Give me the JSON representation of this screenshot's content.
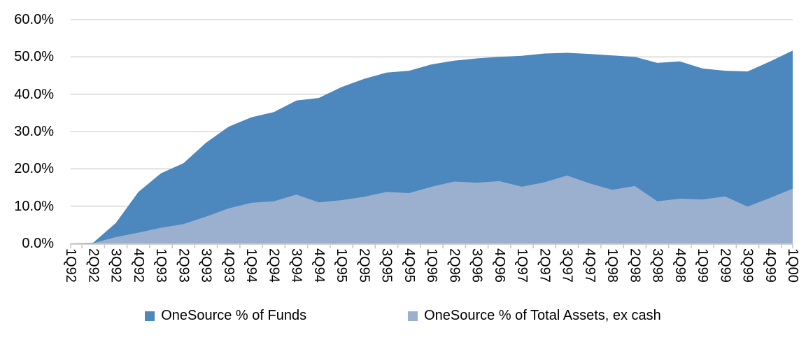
{
  "chart_data": {
    "type": "area",
    "title": "",
    "overlapping_series": true,
    "categories": [
      "1Q92",
      "2Q92",
      "3Q92",
      "4Q92",
      "1Q93",
      "2Q93",
      "3Q93",
      "4Q93",
      "1Q94",
      "2Q94",
      "3Q94",
      "4Q94",
      "1Q95",
      "2Q95",
      "3Q95",
      "4Q95",
      "1Q96",
      "2Q96",
      "3Q96",
      "4Q96",
      "1Q97",
      "2Q97",
      "3Q97",
      "4Q97",
      "1Q98",
      "2Q98",
      "3Q98",
      "4Q98",
      "1Q99",
      "2Q99",
      "3Q99",
      "4Q99",
      "1Q00"
    ],
    "series": [
      {
        "name": "OneSource % of Funds",
        "color": "#4C87BE",
        "values": [
          0.0,
          0.2,
          5.5,
          13.8,
          18.8,
          21.5,
          27.0,
          31.3,
          33.8,
          35.2,
          38.3,
          39.0,
          41.9,
          44.1,
          45.8,
          46.3,
          48.0,
          49.0,
          49.6,
          50.0,
          50.3,
          50.9,
          51.1,
          50.8,
          50.4,
          50.0,
          48.4,
          48.8,
          46.9,
          46.3,
          46.1,
          48.8,
          51.7
        ]
      },
      {
        "name": "OneSource % of Total Assets, ex cash",
        "color": "#9BB0CE",
        "values": [
          0.0,
          0.1,
          1.7,
          2.9,
          4.2,
          5.2,
          7.2,
          9.4,
          10.9,
          11.3,
          13.1,
          11.0,
          11.6,
          12.5,
          13.8,
          13.5,
          15.2,
          16.6,
          16.3,
          16.7,
          15.2,
          16.4,
          18.2,
          16.1,
          14.4,
          15.4,
          11.3,
          12.0,
          11.8,
          12.6,
          9.9,
          12.2,
          14.7
        ]
      }
    ],
    "y_axis": {
      "min": 0,
      "max": 60,
      "tick_step": 10,
      "tick_labels": [
        "0.0%",
        "10.0%",
        "20.0%",
        "30.0%",
        "40.0%",
        "50.0%",
        "60.0%"
      ]
    },
    "x_axis": {
      "label_rotation": "vertical-top-down"
    },
    "grid": true,
    "legend_position": "bottom",
    "colors": {
      "gridline": "#D9D9D9",
      "axis": "#C9C9C9",
      "background": "#FFFFFF",
      "text": "#000000"
    }
  }
}
